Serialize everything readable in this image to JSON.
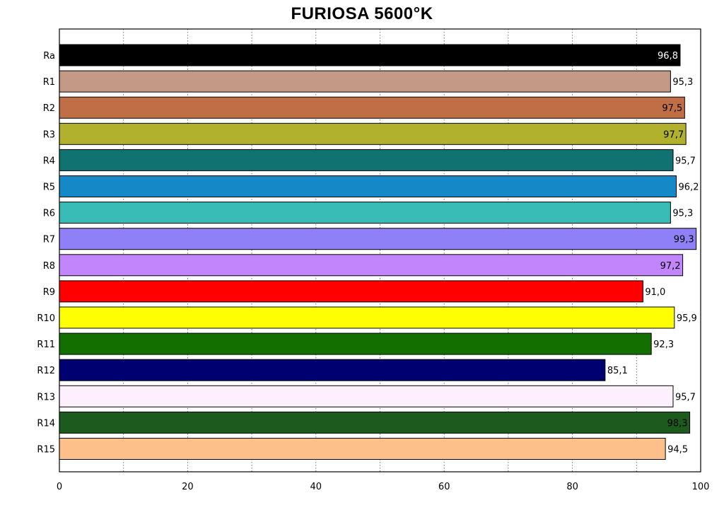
{
  "chart_data": {
    "type": "bar",
    "orientation": "horizontal",
    "title": "FURIOSA 5600°K",
    "xlabel": "",
    "ylabel": "",
    "xlim": [
      0,
      100
    ],
    "xticks": [
      "0",
      "20",
      "40",
      "60",
      "80",
      "100"
    ],
    "grid": "vertical dotted at every 10",
    "legend": "none",
    "categories": [
      "Ra",
      "R1",
      "R2",
      "R3",
      "R4",
      "R5",
      "R6",
      "R7",
      "R8",
      "R9",
      "R10",
      "R11",
      "R12",
      "R13",
      "R14",
      "R15"
    ],
    "values": [
      96.8,
      95.3,
      97.5,
      97.7,
      95.7,
      96.2,
      95.3,
      99.3,
      97.2,
      91.0,
      95.9,
      92.3,
      85.1,
      95.7,
      98.3,
      94.5
    ],
    "value_labels": [
      "96,8",
      "95,3",
      "97,5",
      "97,7",
      "95,7",
      "96,2",
      "95,3",
      "99,3",
      "97,2",
      "91,0",
      "95,9",
      "92,3",
      "85,1",
      "95,7",
      "98,3",
      "94,5"
    ],
    "label_placement": [
      "inside",
      "outside",
      "inside",
      "inside",
      "outside",
      "outside",
      "outside",
      "inside",
      "inside",
      "outside",
      "outside",
      "outside",
      "outside",
      "outside",
      "inside",
      "outside"
    ],
    "label_colors": [
      "#ffffff",
      "#000000",
      "#000000",
      "#000000",
      "#000000",
      "#000000",
      "#000000",
      "#000000",
      "#000000",
      "#000000",
      "#000000",
      "#000000",
      "#000000",
      "#000000",
      "#000000",
      "#000000"
    ],
    "colors": [
      "#000000",
      "#c49a87",
      "#c06e45",
      "#b1b12e",
      "#117272",
      "#1589c8",
      "#38bcb5",
      "#9080f8",
      "#c285fb",
      "#ff0000",
      "#ffff00",
      "#137000",
      "#000070",
      "#fcf0fc",
      "#1d5a1d",
      "#fdc08b"
    ]
  }
}
